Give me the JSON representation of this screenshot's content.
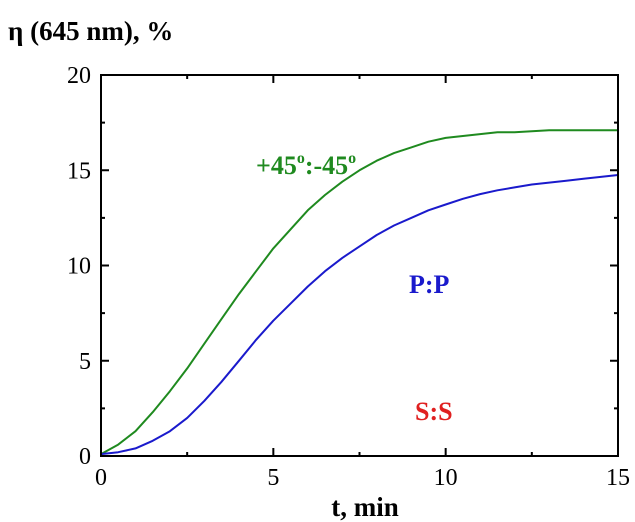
{
  "chart_data": {
    "type": "line",
    "ylabel": "η (645 nm), %",
    "xlabel": "t, min",
    "xlim": [
      0,
      15
    ],
    "ylim": [
      0,
      20
    ],
    "x_ticks": [
      "0",
      "5",
      "10",
      "15"
    ],
    "y_ticks": [
      "0",
      "5",
      "10",
      "15",
      "20"
    ],
    "grid": false,
    "legend": "none (labels placed next to curves)",
    "series": [
      {
        "name": "+45°:-45°",
        "label_main": "+45",
        "label_deg1": "o",
        "label_mid": ":-45",
        "label_deg2": "o",
        "color": "#1f8a1f",
        "x": [
          0,
          0.5,
          1,
          1.5,
          2,
          2.5,
          3,
          3.5,
          4,
          4.5,
          5,
          5.5,
          6,
          6.5,
          7,
          7.5,
          8,
          8.5,
          9,
          9.5,
          10,
          10.5,
          11,
          11.5,
          12,
          12.5,
          13,
          13.5,
          14,
          14.5,
          15
        ],
        "values": [
          0.1,
          0.6,
          1.3,
          2.3,
          3.4,
          4.6,
          5.9,
          7.2,
          8.5,
          9.7,
          10.9,
          11.9,
          12.9,
          13.7,
          14.4,
          15.0,
          15.5,
          15.9,
          16.2,
          16.5,
          16.7,
          16.8,
          16.9,
          17.0,
          17.0,
          17.05,
          17.1,
          17.1,
          17.1,
          17.1,
          17.1
        ]
      },
      {
        "name": "P:P",
        "color": "#1a1acc",
        "x": [
          0,
          0.5,
          1,
          1.5,
          2,
          2.5,
          3,
          3.5,
          4,
          4.5,
          5,
          5.5,
          6,
          6.5,
          7,
          7.5,
          8,
          8.5,
          9,
          9.5,
          10,
          10.5,
          11,
          11.5,
          12,
          12.5,
          13,
          13.5,
          14,
          14.5,
          15
        ],
        "values": [
          0.1,
          0.2,
          0.4,
          0.8,
          1.3,
          2.0,
          2.9,
          3.9,
          5.0,
          6.1,
          7.1,
          8.0,
          8.9,
          9.7,
          10.4,
          11.0,
          11.6,
          12.1,
          12.5,
          12.9,
          13.2,
          13.5,
          13.75,
          13.95,
          14.1,
          14.25,
          14.35,
          14.45,
          14.55,
          14.65,
          14.75
        ]
      },
      {
        "name": "S:S",
        "color": "#e02020",
        "x": [
          0,
          15
        ],
        "values": [
          0,
          0
        ]
      }
    ]
  }
}
